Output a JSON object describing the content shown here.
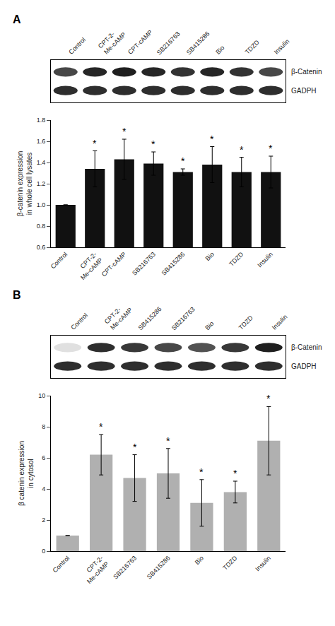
{
  "chart_data": [
    {
      "type": "blot",
      "title": "A",
      "categories": [
        "Control",
        "CPT-2-\nMe-cAMP",
        "CPT-cAMP",
        "SB216763",
        "SB415286",
        "Bio",
        "TDZD",
        "Insulin"
      ],
      "series": [
        {
          "name": "β-Catenin",
          "values": [
            0.72,
            0.85,
            0.88,
            0.85,
            0.8,
            0.85,
            0.8,
            0.72
          ]
        },
        {
          "name": "GADPH",
          "values": [
            0.82,
            0.82,
            0.82,
            0.82,
            0.82,
            0.82,
            0.82,
            0.82
          ]
        }
      ]
    },
    {
      "type": "bar",
      "categories": [
        "Control",
        "CPT-2-\nMe-cAMP",
        "CPT-cAMP",
        "SB216763",
        "SB415286",
        "Bio",
        "TDZD",
        "Insulin"
      ],
      "values": [
        1.0,
        1.34,
        1.43,
        1.39,
        1.31,
        1.38,
        1.31,
        1.31
      ],
      "errors": [
        0.0,
        0.17,
        0.19,
        0.11,
        0.03,
        0.17,
        0.14,
        0.15
      ],
      "color": "#111111",
      "ylabel": "β-catenin expression\nin whole cell lysates",
      "ylim": [
        0.6,
        1.8
      ],
      "yticks": [
        0.6,
        0.8,
        {
          "value": 1.0,
          "label": "1.0"
        },
        1.2,
        1.4,
        1.6,
        1.8
      ],
      "grid": false,
      "annotations": [
        {
          "category": "CPT-2-\nMe-cAMP",
          "text": "*"
        },
        {
          "category": "CPT-cAMP",
          "text": "*"
        },
        {
          "category": "SB216763",
          "text": "*"
        },
        {
          "category": "SB415286",
          "text": "*"
        },
        {
          "category": "Bio",
          "text": "*"
        },
        {
          "category": "TDZD",
          "text": "*"
        },
        {
          "category": "Insulin",
          "text": "*"
        }
      ]
    },
    {
      "type": "blot",
      "title": "B",
      "categories": [
        "Control",
        "CPT-2-\nMe-cAMP",
        "SB415286",
        "SB216763",
        "Bio",
        "TDZD",
        "Insulin"
      ],
      "series": [
        {
          "name": "β-Catenin",
          "values": [
            0.12,
            0.82,
            0.78,
            0.72,
            0.68,
            0.78,
            0.88
          ]
        },
        {
          "name": "GADPH",
          "values": [
            0.82,
            0.82,
            0.82,
            0.82,
            0.82,
            0.82,
            0.82
          ]
        }
      ]
    },
    {
      "type": "bar",
      "categories": [
        "Control",
        "CPT-2-\nMe-cAMP",
        "SB216763",
        "SB415286",
        "Bio",
        "TDZD",
        "Insulin"
      ],
      "values": [
        1.0,
        6.2,
        4.7,
        5.0,
        3.1,
        3.8,
        7.1
      ],
      "errors": [
        0.0,
        1.3,
        1.5,
        1.6,
        1.5,
        0.7,
        2.2
      ],
      "color": "#b0b0b0",
      "ylabel": "β catenin expression\nin cytosol",
      "ylim": [
        0,
        10
      ],
      "yticks": [
        0,
        2,
        4,
        6,
        8,
        10
      ],
      "grid": false,
      "annotations": [
        {
          "category": "CPT-2-\nMe-cAMP",
          "text": "*"
        },
        {
          "category": "SB216763",
          "text": "*"
        },
        {
          "category": "SB415286",
          "text": "*"
        },
        {
          "category": "Bio",
          "text": "*"
        },
        {
          "category": "TDZD",
          "text": "*"
        },
        {
          "category": "Insulin",
          "text": "*"
        }
      ]
    }
  ]
}
